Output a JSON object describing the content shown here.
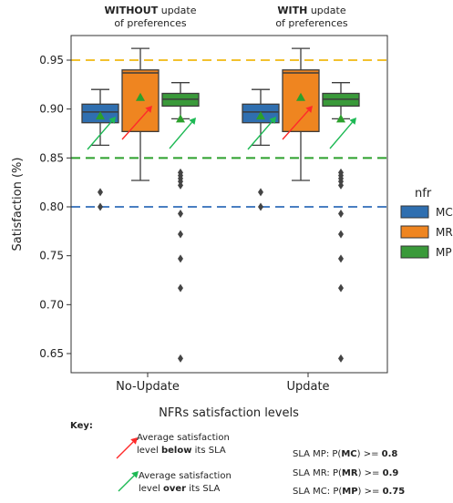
{
  "chart_data": {
    "type": "box",
    "xlabel": "NFRs satisfaction levels",
    "ylabel": "Satisfaction (%)",
    "ylim": [
      0.63,
      0.99
    ],
    "yticks": [
      0.65,
      0.7,
      0.75,
      0.8,
      0.85,
      0.9,
      0.95
    ],
    "ytick_labels": [
      "0.65",
      "0.70",
      "0.75",
      "0.80",
      "0.85",
      "0.90",
      "0.95"
    ],
    "categories": [
      "No-Update",
      "Update"
    ],
    "legend": {
      "title": "nfr",
      "placement": "right",
      "labels": [
        "MC",
        "MR",
        "MP"
      ]
    },
    "series": [
      {
        "name": "MC",
        "color": "#2f6fb0",
        "boxes": [
          {
            "whislo": 0.863,
            "q1": 0.886,
            "med": 0.897,
            "q3": 0.905,
            "whishi": 0.92,
            "mean": 0.893,
            "fliers": [
              0.815,
              0.8
            ]
          },
          {
            "whislo": 0.863,
            "q1": 0.886,
            "med": 0.897,
            "q3": 0.905,
            "whishi": 0.92,
            "mean": 0.893,
            "fliers": [
              0.815,
              0.8
            ]
          }
        ]
      },
      {
        "name": "MR",
        "color": "#ef8520",
        "boxes": [
          {
            "whislo": 0.827,
            "q1": 0.877,
            "med": 0.937,
            "q3": 0.94,
            "whishi": 0.962,
            "mean": 0.912,
            "fliers": []
          },
          {
            "whislo": 0.827,
            "q1": 0.877,
            "med": 0.937,
            "q3": 0.94,
            "whishi": 0.962,
            "mean": 0.912,
            "fliers": []
          }
        ]
      },
      {
        "name": "MP",
        "color": "#3a9a3a",
        "boxes": [
          {
            "whislo": 0.89,
            "q1": 0.903,
            "med": 0.91,
            "q3": 0.916,
            "whishi": 0.927,
            "mean": 0.89,
            "fliers": [
              0.835,
              0.832,
              0.829,
              0.826,
              0.822,
              0.793,
              0.772,
              0.747,
              0.717,
              0.645
            ]
          },
          {
            "whislo": 0.89,
            "q1": 0.903,
            "med": 0.91,
            "q3": 0.916,
            "whishi": 0.927,
            "mean": 0.89,
            "fliers": [
              0.835,
              0.832,
              0.829,
              0.826,
              0.822,
              0.793,
              0.772,
              0.747,
              0.717,
              0.645
            ]
          }
        ]
      }
    ],
    "reference_lines": [
      {
        "value": 0.95,
        "color": "#f2c12e"
      },
      {
        "value": 0.85,
        "color": "#2ca02c"
      },
      {
        "value": 0.8,
        "color": "#4a7fc1"
      }
    ],
    "arrow_colors": {
      "below": "#ff2a2a",
      "over": "#1db954"
    }
  },
  "annotations": {
    "without_bold": "WITHOUT",
    "without_rest": " update",
    "without_line2": "of preferences",
    "with_bold": "WITH",
    "with_rest": " update",
    "with_line2": "of preferences"
  },
  "key": {
    "title": "Key:",
    "below_line1": "Average satisfaction",
    "below_pre": "level ",
    "below_bold": "below",
    "below_post": "  its SLA",
    "over_line1": "Average satisfaction",
    "over_pre": "level ",
    "over_bold": "over",
    "over_post": " its SLA"
  },
  "sla": [
    {
      "pre": "SLA MP: P(",
      "bold": "MC",
      "mid": ") >= ",
      "val": "0.8"
    },
    {
      "pre": "SLA MR: P(",
      "bold": "MR",
      "mid": ") >= ",
      "val": "0.9"
    },
    {
      "pre": "SLA MC: P(",
      "bold": "MP",
      "mid": ") >= ",
      "val": "0.75"
    }
  ]
}
